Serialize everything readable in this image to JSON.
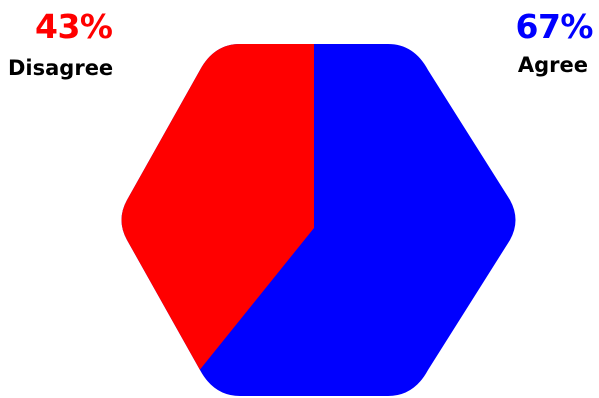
{
  "chart_data": {
    "type": "pie",
    "shape": "hexagon",
    "slices": [
      {
        "label": "Disagree",
        "value_label": "43%",
        "value": 43,
        "color": "#ff0000"
      },
      {
        "label": "Agree",
        "value_label": "67%",
        "value": 67,
        "color": "#0000ff"
      }
    ],
    "divider_from": "top-center",
    "divider_to": "lower-left"
  },
  "labels": {
    "disagree_pct": "43%",
    "disagree_label": "Disagree",
    "agree_pct": "67%",
    "agree_label": "Agree"
  }
}
